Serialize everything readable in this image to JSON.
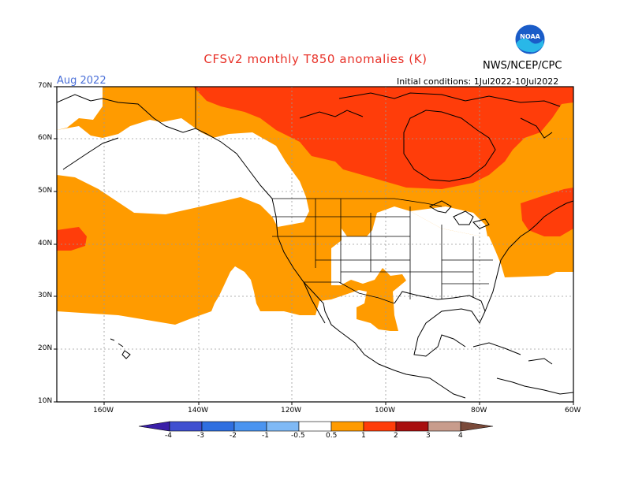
{
  "header": {
    "title": "CFSv2 monthly T850 anomalies (K)",
    "agency": "NWS/NCEP/CPC",
    "period": "Aug 2022",
    "initial_conditions": "Initial conditions: 1Jul2022-10Jul2022",
    "logo_text": "NOAA"
  },
  "map": {
    "lat_labels": [
      "70N",
      "60N",
      "50N",
      "40N",
      "30N",
      "20N",
      "10N"
    ],
    "lon_labels": [
      "160W",
      "140W",
      "120W",
      "100W",
      "80W",
      "60W"
    ],
    "region": "North America and eastern Pacific",
    "colors": {
      "land_outline": "#000000",
      "grid": "#9a9a9a"
    }
  },
  "colorbar": {
    "labels": [
      "-4",
      "-3",
      "-2",
      "-1",
      "-0.5",
      "0.5",
      "1",
      "2",
      "3",
      "4"
    ],
    "colors": [
      "#3a1fa8",
      "#3f4fd0",
      "#2f6fe0",
      "#4a94f0",
      "#7fb9f5",
      "#ffffff",
      "#ff9b00",
      "#ff3d0a",
      "#a80f0f",
      "#c89c8c",
      "#7a4a3a"
    ]
  }
}
